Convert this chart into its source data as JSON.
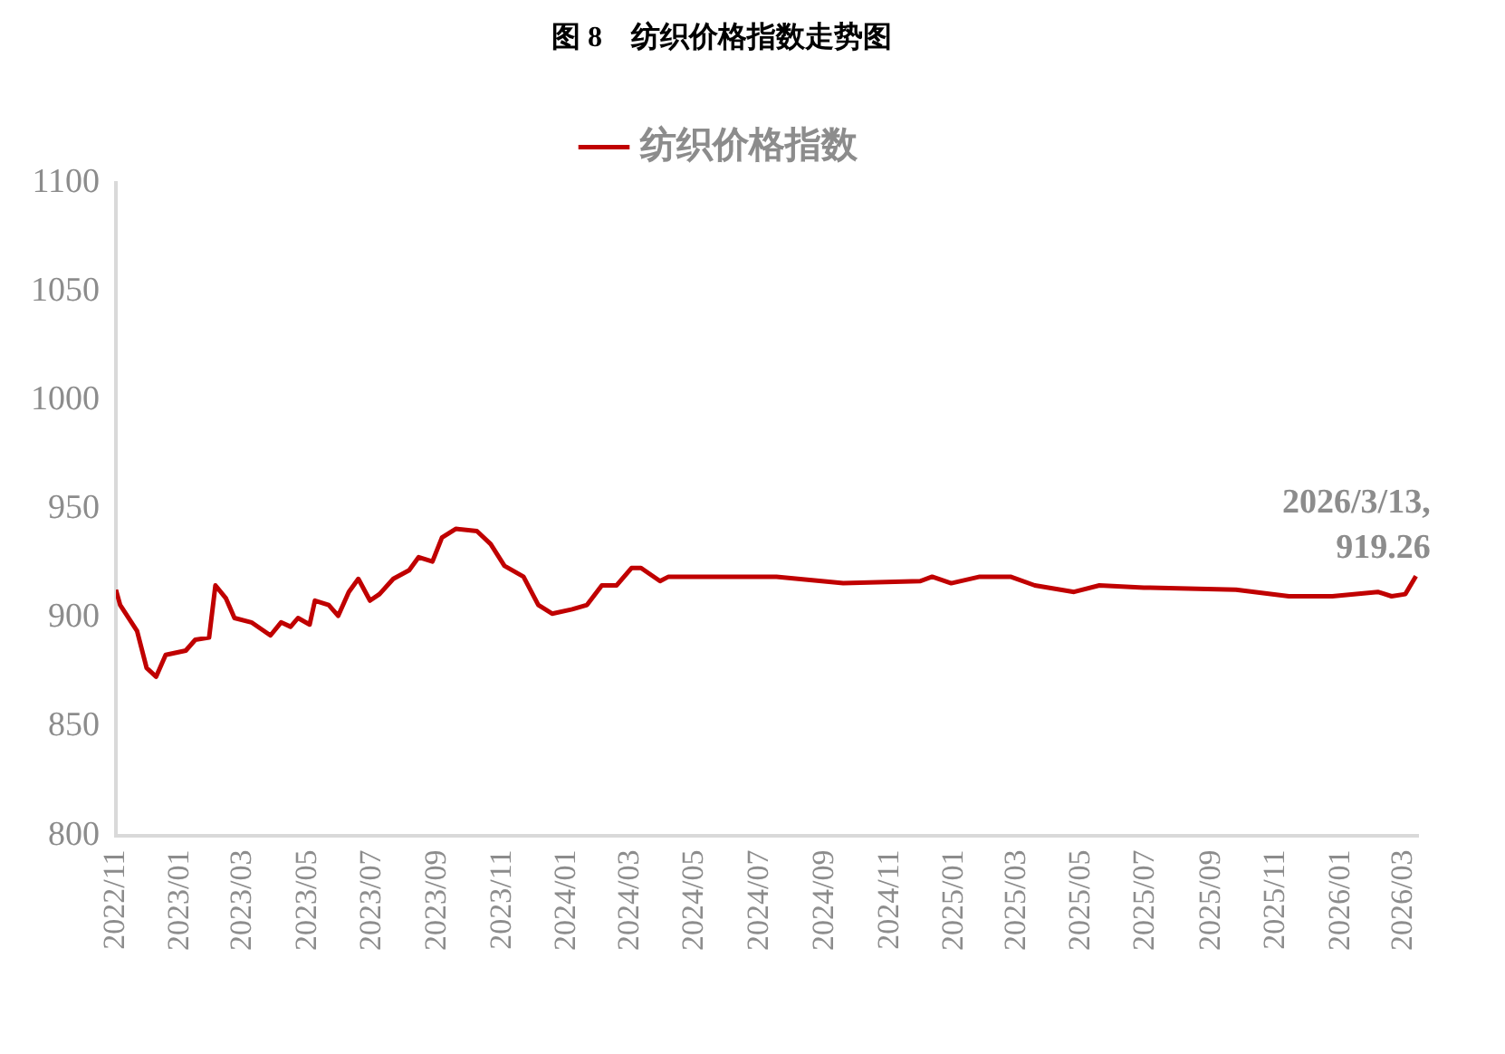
{
  "chart_data": {
    "type": "line",
    "title": "图 8　纺织价格指数走势图",
    "x": [
      "2022-11-01",
      "2022-11-05",
      "2022-11-21",
      "2022-11-30",
      "2022-12-09",
      "2022-12-18",
      "2023-01-06",
      "2023-01-15",
      "2023-01-28",
      "2023-02-03",
      "2023-02-13",
      "2023-02-21",
      "2023-03-09",
      "2023-03-27",
      "2023-04-06",
      "2023-04-15",
      "2023-04-22",
      "2023-05-03",
      "2023-05-08",
      "2023-05-21",
      "2023-05-30",
      "2023-06-09",
      "2023-06-18",
      "2023-06-29",
      "2023-07-08",
      "2023-07-21",
      "2023-08-05",
      "2023-08-14",
      "2023-08-27",
      "2023-09-05",
      "2023-09-18",
      "2023-10-08",
      "2023-10-21",
      "2023-11-03",
      "2023-11-21",
      "2023-12-05",
      "2023-12-18",
      "2024-01-06",
      "2024-01-20",
      "2024-02-03",
      "2024-02-17",
      "2024-03-02",
      "2024-03-11",
      "2024-03-29",
      "2024-04-06",
      "2024-07-17",
      "2024-09-18",
      "2024-11-30",
      "2024-12-11",
      "2024-12-29",
      "2025-01-25",
      "2025-02-23",
      "2025-03-18",
      "2025-04-24",
      "2025-05-18",
      "2025-06-29",
      "2025-09-24",
      "2025-11-13",
      "2025-12-24",
      "2026-02-05",
      "2026-02-18",
      "2026-03-03",
      "2026-03-13"
    ],
    "series": [
      {
        "name": "纺织价格指数",
        "color": "#c00000",
        "values": [
          913,
          906,
          894,
          877,
          873,
          883,
          885,
          890,
          891,
          915,
          909,
          900,
          898,
          892,
          898,
          896,
          900,
          897,
          908,
          906,
          901,
          912,
          918,
          908,
          911,
          918,
          922,
          928,
          926,
          937,
          941,
          940,
          934,
          924,
          919,
          906,
          902,
          904,
          906,
          915,
          915,
          923,
          923,
          917,
          919,
          919,
          916,
          917,
          919,
          916,
          919,
          919,
          915,
          912,
          915,
          914,
          913,
          910,
          910,
          912,
          910,
          911,
          919.26
        ]
      }
    ],
    "xlim": [
      "2022-11-01",
      "2026-03-15"
    ],
    "xticks": [
      {
        "value": "2022-11",
        "label": "2022/11"
      },
      {
        "value": "2023-01",
        "label": "2023/01"
      },
      {
        "value": "2023-03",
        "label": "2023/03"
      },
      {
        "value": "2023-05",
        "label": "2023/05"
      },
      {
        "value": "2023-07",
        "label": "2023/07"
      },
      {
        "value": "2023-09",
        "label": "2023/09"
      },
      {
        "value": "2023-11",
        "label": "2023/11"
      },
      {
        "value": "2024-01",
        "label": "2024/01"
      },
      {
        "value": "2024-03",
        "label": "2024/03"
      },
      {
        "value": "2024-05",
        "label": "2024/05"
      },
      {
        "value": "2024-07",
        "label": "2024/07"
      },
      {
        "value": "2024-09",
        "label": "2024/09"
      },
      {
        "value": "2024-11",
        "label": "2024/11"
      },
      {
        "value": "2025-01",
        "label": "2025/01"
      },
      {
        "value": "2025-03",
        "label": "2025/03"
      },
      {
        "value": "2025-05",
        "label": "2025/05"
      },
      {
        "value": "2025-07",
        "label": "2025/07"
      },
      {
        "value": "2025-09",
        "label": "2025/09"
      },
      {
        "value": "2025-11",
        "label": "2025/11"
      },
      {
        "value": "2026-01",
        "label": "2026/01"
      },
      {
        "value": "2026-03",
        "label": "2026/03"
      }
    ],
    "ylim": [
      800,
      1100
    ],
    "yticks": [
      800,
      850,
      900,
      950,
      1000,
      1050,
      1100
    ],
    "grid": false,
    "legend": "top",
    "marker": "none",
    "line_style": "solid",
    "annotations": [
      {
        "text": "2026/3/13, 919.26",
        "x": "2026-03-13",
        "y": 919.26
      }
    ]
  }
}
